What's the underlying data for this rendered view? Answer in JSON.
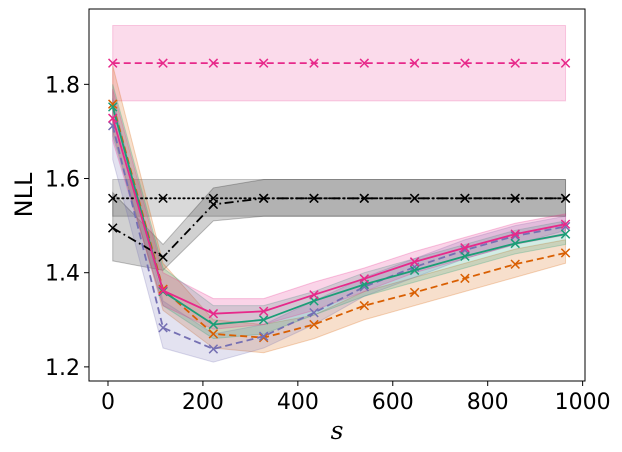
{
  "chart_data": {
    "type": "line",
    "title": "",
    "xlabel": "s",
    "ylabel": "NLL",
    "xlim": [
      -40,
      1005
    ],
    "ylim": [
      1.17,
      1.96
    ],
    "x_ticks": [
      0,
      200,
      400,
      600,
      800,
      1000
    ],
    "y_ticks": [
      1.2,
      1.4,
      1.6,
      1.8
    ],
    "x_tick_labels": [
      "0",
      "200",
      "400",
      "600",
      "800",
      "1000"
    ],
    "y_tick_labels": [
      "1.2",
      "1.4",
      "1.6",
      "1.8"
    ],
    "x": [
      10,
      116,
      222,
      328,
      434,
      540,
      646,
      752,
      858,
      964
    ],
    "bands": [
      {
        "name": "pink-flat-band",
        "color": "#e7298a",
        "opacity": 0.17,
        "x": [
          10,
          964
        ],
        "lower": [
          1.765,
          1.765
        ],
        "upper": [
          1.925,
          1.925
        ]
      },
      {
        "name": "grey-dotted-band",
        "color": "#000000",
        "opacity": 0.15,
        "x": [
          10,
          964
        ],
        "lower": [
          1.52,
          1.52
        ],
        "upper": [
          1.598,
          1.598
        ]
      },
      {
        "name": "grey-dashdot-band",
        "color": "#000000",
        "opacity": 0.18,
        "x": [
          10,
          116,
          222,
          328,
          434,
          540,
          646,
          752,
          858,
          964
        ],
        "lower": [
          1.425,
          1.405,
          1.51,
          1.52,
          1.52,
          1.52,
          1.52,
          1.52,
          1.52,
          1.52
        ],
        "upper": [
          1.57,
          1.46,
          1.58,
          1.598,
          1.598,
          1.598,
          1.598,
          1.598,
          1.598,
          1.598
        ]
      },
      {
        "name": "orange-band",
        "color": "#d95f02",
        "opacity": 0.2,
        "x": [
          10,
          116,
          222,
          328,
          434,
          540,
          646,
          752,
          858,
          964
        ],
        "lower": [
          1.7,
          1.32,
          1.24,
          1.23,
          1.26,
          1.3,
          1.33,
          1.36,
          1.39,
          1.42
        ],
        "upper": [
          1.84,
          1.42,
          1.3,
          1.29,
          1.31,
          1.36,
          1.39,
          1.42,
          1.45,
          1.47
        ]
      },
      {
        "name": "purple-band",
        "color": "#7570b3",
        "opacity": 0.2,
        "x": [
          10,
          116,
          222,
          328,
          434,
          540,
          646,
          752,
          858,
          964
        ],
        "lower": [
          1.64,
          1.24,
          1.21,
          1.24,
          1.29,
          1.35,
          1.39,
          1.43,
          1.46,
          1.49
        ],
        "upper": [
          1.77,
          1.34,
          1.27,
          1.29,
          1.34,
          1.39,
          1.43,
          1.47,
          1.5,
          1.52
        ]
      },
      {
        "name": "teal-band",
        "color": "#1b9e77",
        "opacity": 0.2,
        "x": [
          10,
          116,
          222,
          328,
          434,
          540,
          646,
          752,
          858,
          964
        ],
        "lower": [
          1.69,
          1.33,
          1.26,
          1.27,
          1.31,
          1.35,
          1.38,
          1.41,
          1.44,
          1.46
        ],
        "upper": [
          1.8,
          1.41,
          1.33,
          1.33,
          1.36,
          1.4,
          1.43,
          1.46,
          1.49,
          1.51
        ]
      },
      {
        "name": "magenta-band",
        "color": "#e7298a",
        "opacity": 0.2,
        "x": [
          10,
          116,
          222,
          328,
          434,
          540,
          646,
          752,
          858,
          964
        ],
        "lower": [
          1.68,
          1.33,
          1.28,
          1.29,
          1.32,
          1.36,
          1.4,
          1.43,
          1.46,
          1.48
        ],
        "upper": [
          1.79,
          1.4,
          1.345,
          1.345,
          1.38,
          1.41,
          1.445,
          1.475,
          1.505,
          1.525
        ]
      }
    ],
    "series": [
      {
        "name": "magenta-dashed-flat",
        "color": "#e7298a",
        "dash": "dashed",
        "marker": "x",
        "values": [
          1.845,
          1.845,
          1.845,
          1.845,
          1.845,
          1.845,
          1.845,
          1.845,
          1.845,
          1.845
        ]
      },
      {
        "name": "black-dotted-flat",
        "color": "#000000",
        "dash": "dotted",
        "marker": "x",
        "values": [
          1.558,
          1.558,
          1.558,
          1.558,
          1.558,
          1.558,
          1.558,
          1.558,
          1.558,
          1.558
        ]
      },
      {
        "name": "black-dashdot",
        "color": "#000000",
        "dash": "dashdot",
        "marker": "x",
        "values": [
          1.495,
          1.433,
          1.545,
          1.558,
          1.558,
          1.558,
          1.558,
          1.558,
          1.558,
          1.558
        ]
      },
      {
        "name": "orange-dashed",
        "color": "#d95f02",
        "dash": "dashed",
        "marker": "x",
        "values": [
          1.758,
          1.365,
          1.27,
          1.262,
          1.29,
          1.33,
          1.358,
          1.388,
          1.418,
          1.442
        ]
      },
      {
        "name": "purple-dashed",
        "color": "#7570b3",
        "dash": "dashed",
        "marker": "x",
        "values": [
          1.712,
          1.283,
          1.238,
          1.265,
          1.315,
          1.37,
          1.412,
          1.448,
          1.478,
          1.498
        ]
      },
      {
        "name": "teal-solid",
        "color": "#1b9e77",
        "dash": "solid",
        "marker": "x",
        "values": [
          1.752,
          1.36,
          1.29,
          1.3,
          1.34,
          1.375,
          1.405,
          1.435,
          1.462,
          1.482
        ]
      },
      {
        "name": "magenta-solid",
        "color": "#e7298a",
        "dash": "solid",
        "marker": "x",
        "values": [
          1.728,
          1.362,
          1.313,
          1.318,
          1.353,
          1.387,
          1.423,
          1.453,
          1.482,
          1.503
        ]
      }
    ]
  }
}
